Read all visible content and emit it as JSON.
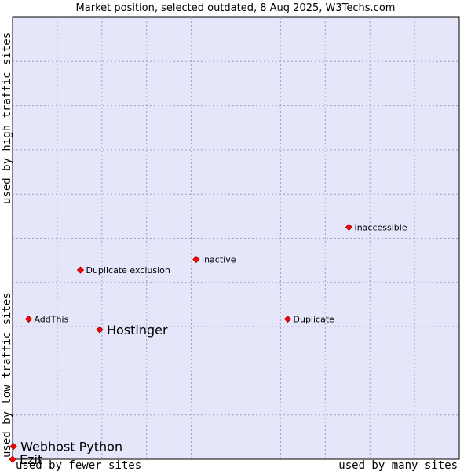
{
  "chart_data": {
    "type": "scatter",
    "title": "Market position, selected outdated, 8 Aug 2025, W3Techs.com",
    "xlabel_low": "used by fewer sites",
    "xlabel_high": "used by many sites",
    "ylabel_low": "used by low traffic sites",
    "ylabel_high": "used by high traffic sites",
    "xlim": [
      0,
      100
    ],
    "ylim": [
      0,
      100
    ],
    "grid": true,
    "points": [
      {
        "name": "Inaccessible",
        "x": 75.3,
        "y": 52.5,
        "highlight": false
      },
      {
        "name": "Inactive",
        "x": 41.1,
        "y": 45.2,
        "highlight": false
      },
      {
        "name": "Duplicate exclusion",
        "x": 15.2,
        "y": 42.8,
        "highlight": false
      },
      {
        "name": "AddThis",
        "x": 3.6,
        "y": 31.7,
        "highlight": false
      },
      {
        "name": "Hostinger",
        "x": 19.5,
        "y": 29.3,
        "highlight": true
      },
      {
        "name": "Duplicate",
        "x": 61.6,
        "y": 31.7,
        "highlight": false
      },
      {
        "name": "Webhost Python",
        "x": 0.2,
        "y": 2.9,
        "highlight": true
      },
      {
        "name": "Ezit",
        "x": 0.0,
        "y": 0.0,
        "highlight": true
      }
    ]
  },
  "colors": {
    "plot_bg": "#e5e6f9",
    "grid": "#a0a0c0",
    "point": "#ff0000",
    "point_edge": "#990000"
  }
}
